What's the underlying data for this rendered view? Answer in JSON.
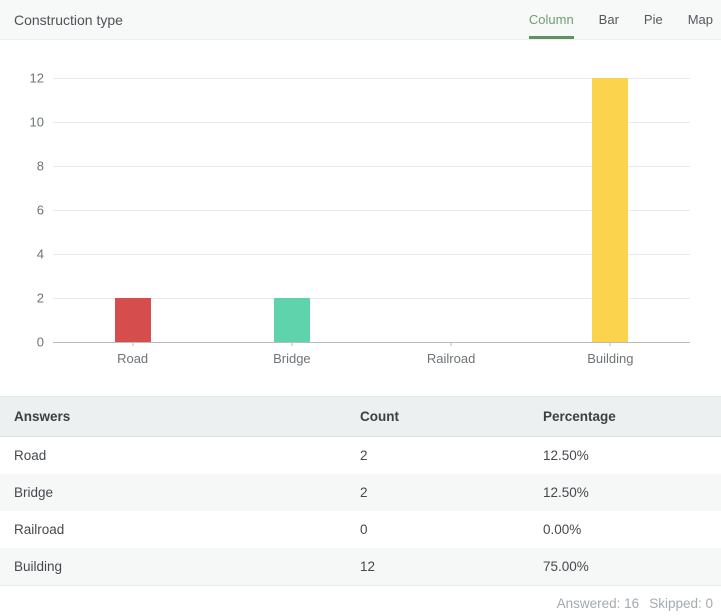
{
  "header": {
    "title": "Construction type",
    "tabs": [
      {
        "label": "Column",
        "active": true
      },
      {
        "label": "Bar",
        "active": false
      },
      {
        "label": "Pie",
        "active": false
      },
      {
        "label": "Map",
        "active": false
      }
    ],
    "accent_color": "#5e935e"
  },
  "chart_data": {
    "type": "bar",
    "title": "Construction type",
    "categories": [
      "Road",
      "Bridge",
      "Railroad",
      "Building"
    ],
    "values": [
      2,
      2,
      0,
      12
    ],
    "colors": [
      "#d64d4d",
      "#5fd3ac",
      "#bfbfbf",
      "#fcd34d"
    ],
    "xlabel": "",
    "ylabel": "",
    "ylim": [
      0,
      12
    ],
    "yticks": [
      0,
      2,
      4,
      6,
      8,
      10,
      12
    ],
    "grid": true,
    "legend": false,
    "gridline_color": "#e9ebec",
    "axis_color": "#b9bcbe"
  },
  "table": {
    "headers": [
      "Answers",
      "Count",
      "Percentage"
    ],
    "rows": [
      {
        "answer": "Road",
        "count": "2",
        "percentage": "12.50%"
      },
      {
        "answer": "Bridge",
        "count": "2",
        "percentage": "12.50%"
      },
      {
        "answer": "Railroad",
        "count": "0",
        "percentage": "0.00%"
      },
      {
        "answer": "Building",
        "count": "12",
        "percentage": "75.00%"
      }
    ]
  },
  "footer": {
    "answered_label": "Answered: 16",
    "skipped_label": "Skipped: 0"
  }
}
